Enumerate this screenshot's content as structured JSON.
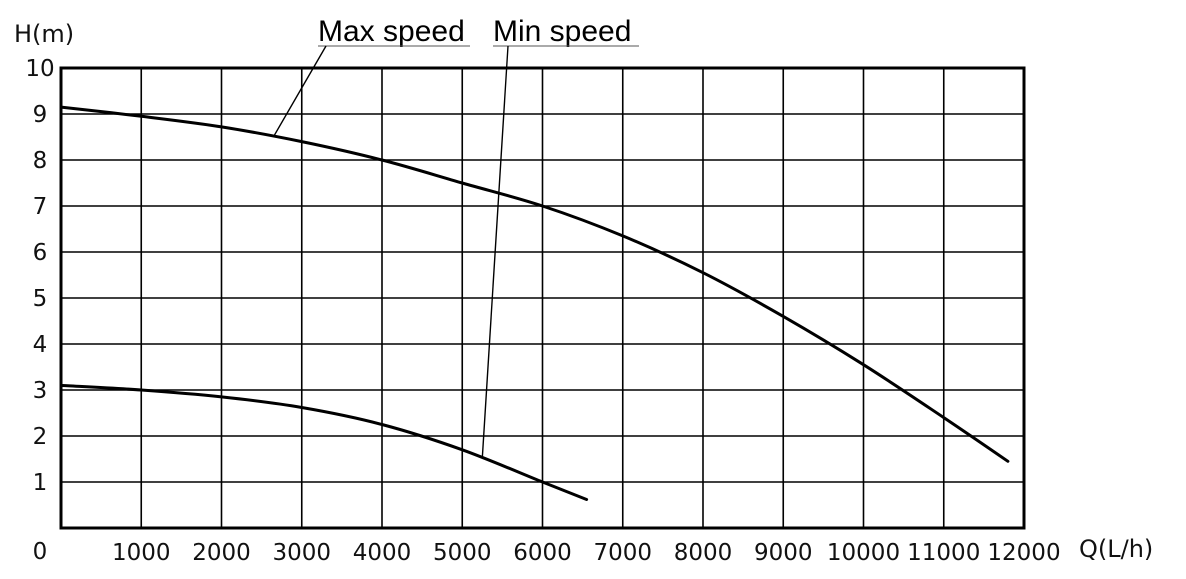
{
  "chart_data": {
    "type": "line",
    "title": "",
    "xlabel": "Q(L/h)",
    "ylabel": "H(m)",
    "xlim": [
      0,
      12000
    ],
    "ylim": [
      0,
      10
    ],
    "grid": true,
    "origin_label": "0",
    "x_ticks": [
      "1000",
      "2000",
      "3000",
      "4000",
      "5000",
      "6000",
      "7000",
      "8000",
      "9000",
      "10000",
      "11000",
      "12000"
    ],
    "x_tick_values": [
      1000,
      2000,
      3000,
      4000,
      5000,
      6000,
      7000,
      8000,
      9000,
      10000,
      11000,
      12000
    ],
    "y_ticks": [
      "1",
      "2",
      "3",
      "4",
      "5",
      "6",
      "7",
      "8",
      "9",
      "10"
    ],
    "y_tick_values": [
      1,
      2,
      3,
      4,
      5,
      6,
      7,
      8,
      9,
      10
    ],
    "series": [
      {
        "name": "Max speed",
        "x": [
          0,
          1000,
          2000,
          3000,
          4000,
          5000,
          6000,
          7000,
          8000,
          9000,
          10000,
          11000,
          11800
        ],
        "y": [
          9.15,
          8.95,
          8.72,
          8.4,
          8.0,
          7.5,
          7.0,
          6.35,
          5.55,
          4.6,
          3.55,
          2.4,
          1.45
        ]
      },
      {
        "name": "Min speed",
        "x": [
          0,
          1000,
          2000,
          3000,
          4000,
          5000,
          6000,
          6550
        ],
        "y": [
          3.1,
          3.0,
          2.85,
          2.62,
          2.25,
          1.7,
          1.0,
          0.62
        ]
      }
    ],
    "annotations": [
      {
        "text": "Max speed",
        "points_to_series": 0,
        "at_x": 2650
      },
      {
        "text": "Min speed",
        "points_to_series": 1,
        "at_x": 5250
      }
    ]
  }
}
